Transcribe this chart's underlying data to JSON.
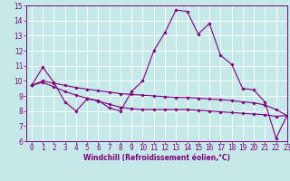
{
  "title": "",
  "xlabel": "Windchill (Refroidissement éolien,°C)",
  "ylabel": "",
  "bg_color": "#c5e8e8",
  "line_color": "#800080",
  "grid_color": "#ffffff",
  "x_values": [
    0,
    1,
    2,
    3,
    4,
    5,
    6,
    7,
    8,
    9,
    10,
    11,
    12,
    13,
    14,
    15,
    16,
    17,
    18,
    19,
    20,
    21,
    22,
    23
  ],
  "y_line1": [
    9.7,
    10.9,
    9.9,
    8.6,
    8.0,
    8.8,
    8.7,
    8.2,
    8.0,
    9.3,
    10.0,
    12.0,
    13.2,
    14.7,
    14.6,
    13.1,
    13.8,
    11.7,
    11.1,
    9.5,
    9.4,
    8.6,
    6.2,
    7.7
  ],
  "y_line2": [
    9.7,
    10.0,
    9.85,
    9.7,
    9.55,
    9.45,
    9.35,
    9.25,
    9.15,
    9.1,
    9.05,
    9.0,
    8.95,
    8.9,
    8.9,
    8.85,
    8.8,
    8.75,
    8.7,
    8.6,
    8.55,
    8.4,
    8.1,
    7.7
  ],
  "y_line3": [
    9.7,
    9.9,
    9.6,
    9.3,
    9.05,
    8.85,
    8.65,
    8.45,
    8.25,
    8.15,
    8.1,
    8.1,
    8.1,
    8.1,
    8.1,
    8.05,
    8.0,
    7.95,
    7.9,
    7.85,
    7.8,
    7.75,
    7.65,
    7.7
  ],
  "ylim": [
    6,
    15
  ],
  "xlim": [
    -0.5,
    23
  ],
  "yticks": [
    6,
    7,
    8,
    9,
    10,
    11,
    12,
    13,
    14,
    15
  ],
  "xticks": [
    0,
    1,
    2,
    3,
    4,
    5,
    6,
    7,
    8,
    9,
    10,
    11,
    12,
    13,
    14,
    15,
    16,
    17,
    18,
    19,
    20,
    21,
    22,
    23
  ],
  "tick_fontsize": 5.5,
  "xlabel_fontsize": 5.5,
  "marker_size": 1.8,
  "line_width": 0.8
}
